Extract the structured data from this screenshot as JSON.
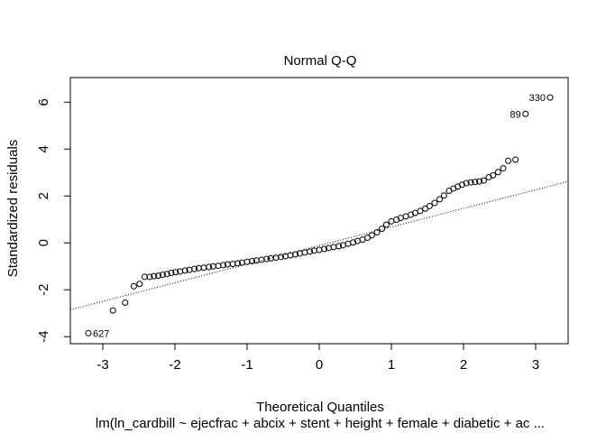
{
  "chart_data": {
    "type": "scatter",
    "title": "Normal Q-Q",
    "xlabel": "Theoretical Quantiles",
    "ylabel": "Standardized residuals",
    "subtitle": "lm(ln_cardbill ~ ejecfrac + abcix + stent + height + female + diabetic + ac ...",
    "xlim": [
      -3.45,
      3.45
    ],
    "ylim": [
      -4.3,
      7.05
    ],
    "x_ticks": [
      -3,
      -2,
      -1,
      0,
      1,
      2,
      3
    ],
    "y_ticks": [
      -4,
      -2,
      0,
      2,
      4,
      6
    ],
    "grid": false,
    "reference_line": {
      "x1": -3.45,
      "y1": -2.85,
      "x2": 3.45,
      "y2": 2.62,
      "style": "dotted"
    },
    "point_labels": [
      {
        "text": "330",
        "x": 3.2,
        "y": 6.2
      },
      {
        "text": "89",
        "x": 2.86,
        "y": 5.5
      },
      {
        "text": "627",
        "x": -3.2,
        "y": -3.85
      }
    ],
    "points": [
      [
        -3.2,
        -3.85
      ],
      [
        -2.86,
        -2.88
      ],
      [
        -2.69,
        -2.55
      ],
      [
        -2.57,
        -1.85
      ],
      [
        -2.49,
        -1.75
      ],
      [
        -2.42,
        -1.45
      ],
      [
        -2.35,
        -1.45
      ],
      [
        -2.29,
        -1.42
      ],
      [
        -2.23,
        -1.4
      ],
      [
        -2.17,
        -1.36
      ],
      [
        -2.11,
        -1.33
      ],
      [
        -2.05,
        -1.28
      ],
      [
        -1.99,
        -1.25
      ],
      [
        -1.93,
        -1.22
      ],
      [
        -1.86,
        -1.18
      ],
      [
        -1.8,
        -1.15
      ],
      [
        -1.73,
        -1.11
      ],
      [
        -1.67,
        -1.08
      ],
      [
        -1.6,
        -1.06
      ],
      [
        -1.53,
        -1.03
      ],
      [
        -1.47,
        -1.0
      ],
      [
        -1.4,
        -0.98
      ],
      [
        -1.33,
        -0.95
      ],
      [
        -1.27,
        -0.92
      ],
      [
        -1.2,
        -0.9
      ],
      [
        -1.13,
        -0.87
      ],
      [
        -1.07,
        -0.84
      ],
      [
        -1.0,
        -0.81
      ],
      [
        -0.93,
        -0.78
      ],
      [
        -0.87,
        -0.75
      ],
      [
        -0.8,
        -0.72
      ],
      [
        -0.73,
        -0.69
      ],
      [
        -0.67,
        -0.66
      ],
      [
        -0.6,
        -0.63
      ],
      [
        -0.53,
        -0.6
      ],
      [
        -0.47,
        -0.57
      ],
      [
        -0.4,
        -0.53
      ],
      [
        -0.33,
        -0.49
      ],
      [
        -0.27,
        -0.45
      ],
      [
        -0.2,
        -0.41
      ],
      [
        -0.13,
        -0.37
      ],
      [
        -0.07,
        -0.33
      ],
      [
        0.0,
        -0.3
      ],
      [
        0.07,
        -0.26
      ],
      [
        0.13,
        -0.22
      ],
      [
        0.2,
        -0.18
      ],
      [
        0.27,
        -0.14
      ],
      [
        0.33,
        -0.1
      ],
      [
        0.4,
        -0.04
      ],
      [
        0.47,
        0.02
      ],
      [
        0.53,
        0.08
      ],
      [
        0.6,
        0.14
      ],
      [
        0.67,
        0.22
      ],
      [
        0.73,
        0.32
      ],
      [
        0.8,
        0.45
      ],
      [
        0.87,
        0.6
      ],
      [
        0.93,
        0.78
      ],
      [
        1.0,
        0.92
      ],
      [
        1.07,
        0.99
      ],
      [
        1.13,
        1.06
      ],
      [
        1.2,
        1.13
      ],
      [
        1.27,
        1.2
      ],
      [
        1.33,
        1.28
      ],
      [
        1.4,
        1.36
      ],
      [
        1.47,
        1.46
      ],
      [
        1.53,
        1.57
      ],
      [
        1.6,
        1.7
      ],
      [
        1.67,
        1.86
      ],
      [
        1.73,
        2.02
      ],
      [
        1.8,
        2.22
      ],
      [
        1.86,
        2.32
      ],
      [
        1.92,
        2.4
      ],
      [
        1.98,
        2.48
      ],
      [
        2.04,
        2.55
      ],
      [
        2.1,
        2.58
      ],
      [
        2.16,
        2.6
      ],
      [
        2.22,
        2.62
      ],
      [
        2.28,
        2.66
      ],
      [
        2.35,
        2.8
      ],
      [
        2.41,
        2.88
      ],
      [
        2.48,
        3.02
      ],
      [
        2.55,
        3.18
      ],
      [
        2.62,
        3.5
      ],
      [
        2.72,
        3.55
      ],
      [
        2.86,
        5.5
      ],
      [
        3.2,
        6.2
      ]
    ]
  }
}
